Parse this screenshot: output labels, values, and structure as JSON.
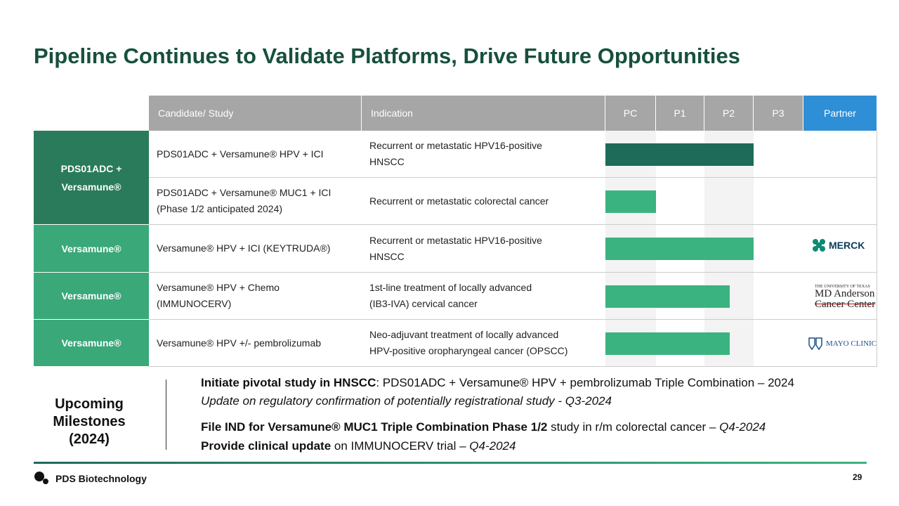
{
  "header": {
    "title": "Pipeline Continues to Validate Platforms, Drive Future Opportunities"
  },
  "table": {
    "columns": [
      "Candidate/ Study",
      "Indication",
      "PC",
      "P1",
      "P2",
      "P3",
      "Partner"
    ],
    "groups": [
      "PDS01ADC + Versamune®",
      "Versamune®",
      "Versamune®",
      "Versamune®"
    ],
    "rows": [
      [
        [
          "PDS01ADC + Versamune® HPV  +  ICI"
        ],
        [
          "Recurrent or metastatic HPV16-positive",
          "HNSCC"
        ]
      ],
      [
        [
          "PDS01ADC + Versamune® MUC1 + ICI",
          "(Phase 1/2 anticipated 2024)"
        ],
        [
          "Recurrent or metastatic colorectal cancer"
        ]
      ],
      [
        [
          "Versamune® HPV + ICI (KEYTRUDA®)"
        ],
        [
          "Recurrent or metastatic HPV16-positive",
          "HNSCC"
        ]
      ],
      [
        [
          "Versamune® HPV + Chemo",
          "(IMMUNOCERV)"
        ],
        [
          "1st-line treatment of locally advanced",
          "(IB3-IVA) cervical cancer"
        ]
      ],
      [
        [
          "Versamune® HPV +/- pembrolizumab"
        ],
        [
          "Neo-adjuvant treatment of locally advanced",
          "HPV-positive oropharyngeal cancer (OPSCC)"
        ]
      ]
    ],
    "partners": {
      "merck": "MERCK",
      "mdanderson": [
        "THE UNIVERSITY OF TEXAS",
        "MD Anderson",
        "Cancer Center"
      ],
      "mayo": "MAYO CLINIC"
    }
  },
  "milestones": {
    "label": "Upcoming Milestones (2024)",
    "items": [
      {
        "bold": "Initiate pivotal study in HNSCC",
        "text": ": PDS01ADC + Versamune® HPV + pembrolizumab Triple Combination – 2024"
      },
      {
        "italic": "Update on regulatory confirmation of potentially registrational study - Q3-2024"
      },
      {
        "bold": "File IND for Versamune® MUC1 Triple Combination Phase 1/2",
        "text": " study in r/m colorectal cancer – ",
        "italic": "Q4-2024"
      },
      {
        "bold": "Provide clinical update",
        "text": " on IMMUNOCERV trial – ",
        "italic": "Q4-2024"
      }
    ]
  },
  "footer": {
    "company": "PDS Biotechnology",
    "page": "29"
  }
}
